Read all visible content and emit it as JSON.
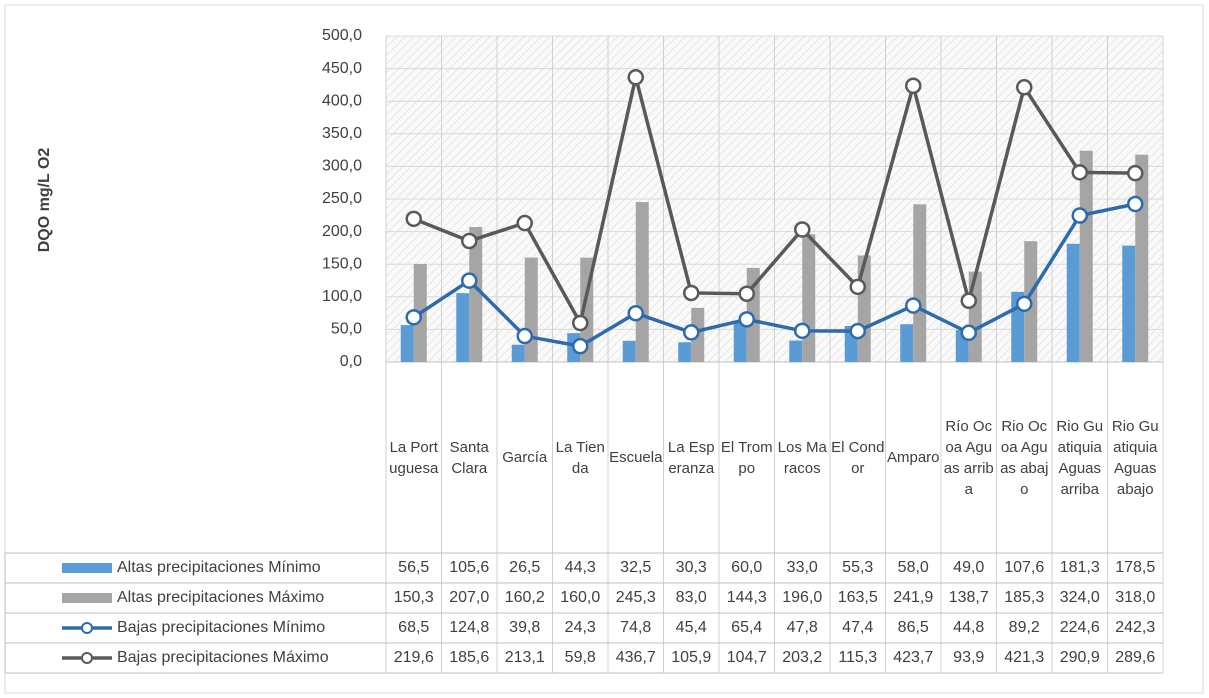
{
  "chart_data": {
    "type": "bar",
    "y_axis_label": "DQO mg/L O2",
    "categories": [
      "La Portuguesa",
      "Santa Clara",
      "García",
      "La Tienda",
      "Escuela",
      "La Esperanza",
      "El Trompo",
      "Los Maracos",
      "El Condor",
      "Amparo",
      "Río Ocoa Aguas arriba",
      "Rio Ocoa Aguas abajo",
      "Rio Guatiquia Aguas arriba",
      "Rio Guatiquia Aguas abajo"
    ],
    "series": [
      {
        "name": "Altas precipitaciones Mínimo",
        "type": "bar",
        "color": "#5b9bd5",
        "values": [
          56.5,
          105.6,
          26.5,
          44.3,
          32.5,
          30.3,
          60.0,
          33.0,
          55.3,
          58.0,
          49.0,
          107.6,
          181.3,
          178.5
        ],
        "value_labels": [
          "56,5",
          "105,6",
          "26,5",
          "44,3",
          "32,5",
          "30,3",
          "60,0",
          "33,0",
          "55,3",
          "58,0",
          "49,0",
          "107,6",
          "181,3",
          "178,5"
        ]
      },
      {
        "name": "Altas precipitaciones Máximo",
        "type": "bar",
        "color": "#a5a5a5",
        "values": [
          150.3,
          207.0,
          160.2,
          160.0,
          245.3,
          83.0,
          144.3,
          196.0,
          163.5,
          241.9,
          138.7,
          185.3,
          324.0,
          318.0
        ],
        "value_labels": [
          "150,3",
          "207,0",
          "160,2",
          "160,0",
          "245,3",
          "83,0",
          "144,3",
          "196,0",
          "163,5",
          "241,9",
          "138,7",
          "185,3",
          "324,0",
          "318,0"
        ]
      },
      {
        "name": "Bajas precipitaciones Mínimo",
        "type": "line",
        "color": "#2e6bad",
        "values": [
          68.5,
          124.8,
          39.8,
          24.3,
          74.8,
          45.4,
          65.4,
          47.8,
          47.4,
          86.5,
          44.8,
          89.2,
          224.6,
          242.3
        ],
        "value_labels": [
          "68,5",
          "124,8",
          "39,8",
          "24,3",
          "74,8",
          "45,4",
          "65,4",
          "47,8",
          "47,4",
          "86,5",
          "44,8",
          "89,2",
          "224,6",
          "242,3"
        ]
      },
      {
        "name": "Bajas precipitaciones Máximo",
        "type": "line",
        "color": "#595959",
        "values": [
          219.6,
          185.6,
          213.1,
          59.8,
          436.7,
          105.9,
          104.7,
          203.2,
          115.3,
          423.7,
          93.9,
          421.3,
          290.9,
          289.6
        ],
        "value_labels": [
          "219,6",
          "185,6",
          "213,1",
          "59,8",
          "436,7",
          "105,9",
          "104,7",
          "203,2",
          "115,3",
          "423,7",
          "93,9",
          "421,3",
          "290,9",
          "289,6"
        ]
      }
    ],
    "ylim": [
      0,
      500
    ],
    "yticks": [
      {
        "value": 0,
        "label": "0,0"
      },
      {
        "value": 50,
        "label": "50,0"
      },
      {
        "value": 100,
        "label": "100,0"
      },
      {
        "value": 150,
        "label": "150,0"
      },
      {
        "value": 200,
        "label": "200,0"
      },
      {
        "value": 250,
        "label": "250,0"
      },
      {
        "value": 300,
        "label": "300,0"
      },
      {
        "value": 350,
        "label": "350,0"
      },
      {
        "value": 400,
        "label": "400,0"
      },
      {
        "value": 450,
        "label": "450,0"
      },
      {
        "value": 500,
        "label": "500,0"
      }
    ],
    "grid": true
  }
}
